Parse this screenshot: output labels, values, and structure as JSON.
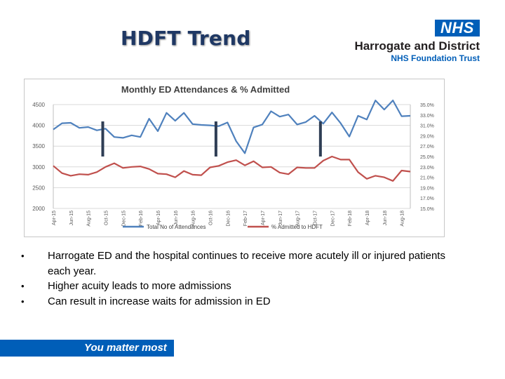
{
  "slide": {
    "title": "HDFT Trend",
    "logo": {
      "badge": "NHS",
      "org_name": "Harrogate and District",
      "org_sub": "NHS Foundation Trust"
    },
    "bullets": [
      "Harrogate ED and the hospital continues to receive more acutely ill or injured patients each year.",
      "Higher acuity leads to more admissions",
      "Can result in increase waits for admission in ED"
    ],
    "footer": "You matter most"
  },
  "colors": {
    "title": "#1f3864",
    "attendances": "#4f81bd",
    "admitted": "#c0504d",
    "brand": "#005eb8",
    "markers": "#2f3e55"
  },
  "chart_data": {
    "type": "line",
    "title": "Monthly ED Attendances & % Admitted",
    "categories": [
      "Apr-15",
      "May-15",
      "Jun-15",
      "Jul-15",
      "Aug-15",
      "Sep-15",
      "Oct-15",
      "Nov-15",
      "Dec-15",
      "Jan-16",
      "Feb-16",
      "Mar-16",
      "Apr-16",
      "May-16",
      "Jun-16",
      "Jul-16",
      "Aug-16",
      "Sep-16",
      "Oct-16",
      "Nov-16",
      "Dec-16",
      "Jan-17",
      "Feb-17",
      "Mar-17",
      "Apr-17",
      "May-17",
      "Jun-17",
      "Jul-17",
      "Aug-17",
      "Sep-17",
      "Oct-17",
      "Nov-17",
      "Dec-17",
      "Jan-18",
      "Feb-18",
      "Mar-18",
      "Apr-18",
      "May-18",
      "Jun-18",
      "Jul-18",
      "Aug-18",
      "Sep-18"
    ],
    "x_tick_labels": [
      "Apr-15",
      "Jun-15",
      "Aug-15",
      "Oct-15",
      "Dec-15",
      "Feb-16",
      "Apr-16",
      "Jun-16",
      "Aug-16",
      "Oct-16",
      "Dec-16",
      "Feb-17",
      "Apr-17",
      "Jun-17",
      "Aug-17",
      "Oct-17",
      "Dec-17",
      "Feb-18",
      "Apr-18",
      "Jun-18",
      "Aug-18"
    ],
    "series": [
      {
        "name": "Total No of Attendances",
        "axis": "left",
        "values": [
          3900,
          4050,
          4060,
          3940,
          3960,
          3880,
          3920,
          3720,
          3700,
          3760,
          3720,
          4160,
          3860,
          4300,
          4110,
          4300,
          4030,
          4010,
          4000,
          3980,
          4070,
          3620,
          3330,
          3950,
          4020,
          4340,
          4210,
          4260,
          4020,
          4080,
          4230,
          4040,
          4310,
          4050,
          3730,
          4230,
          4140,
          4600,
          4380,
          4600,
          4220,
          4230
        ]
      },
      {
        "name": "% Admitted to HDFT",
        "axis": "right",
        "values": [
          23.2,
          21.8,
          21.3,
          21.6,
          21.5,
          22.0,
          23.0,
          23.7,
          22.8,
          23.0,
          23.1,
          22.6,
          21.7,
          21.6,
          21.0,
          22.2,
          21.5,
          21.4,
          22.9,
          23.2,
          23.9,
          24.3,
          23.3,
          24.1,
          22.9,
          23.0,
          21.9,
          21.6,
          22.9,
          22.8,
          22.8,
          24.2,
          25.0,
          24.4,
          24.4,
          22.0,
          20.7,
          21.3,
          21.0,
          20.3,
          22.3,
          22.1
        ]
      }
    ],
    "y_left": {
      "min": 2000,
      "max": 4500,
      "ticks": [
        "2000",
        "2500",
        "3000",
        "3500",
        "4000",
        "4500"
      ]
    },
    "y_right": {
      "min": 15.0,
      "max": 35.0,
      "ticks": [
        "15.0%",
        "17.0%",
        "19.0%",
        "21.0%",
        "23.0%",
        "25.0%",
        "27.0%",
        "29.0%",
        "31.0%",
        "33.0%",
        "35.0%"
      ]
    },
    "markers_at": [
      "Oct-15",
      "Nov-16",
      "Nov-17"
    ],
    "legend_position": "bottom",
    "grid": true
  }
}
